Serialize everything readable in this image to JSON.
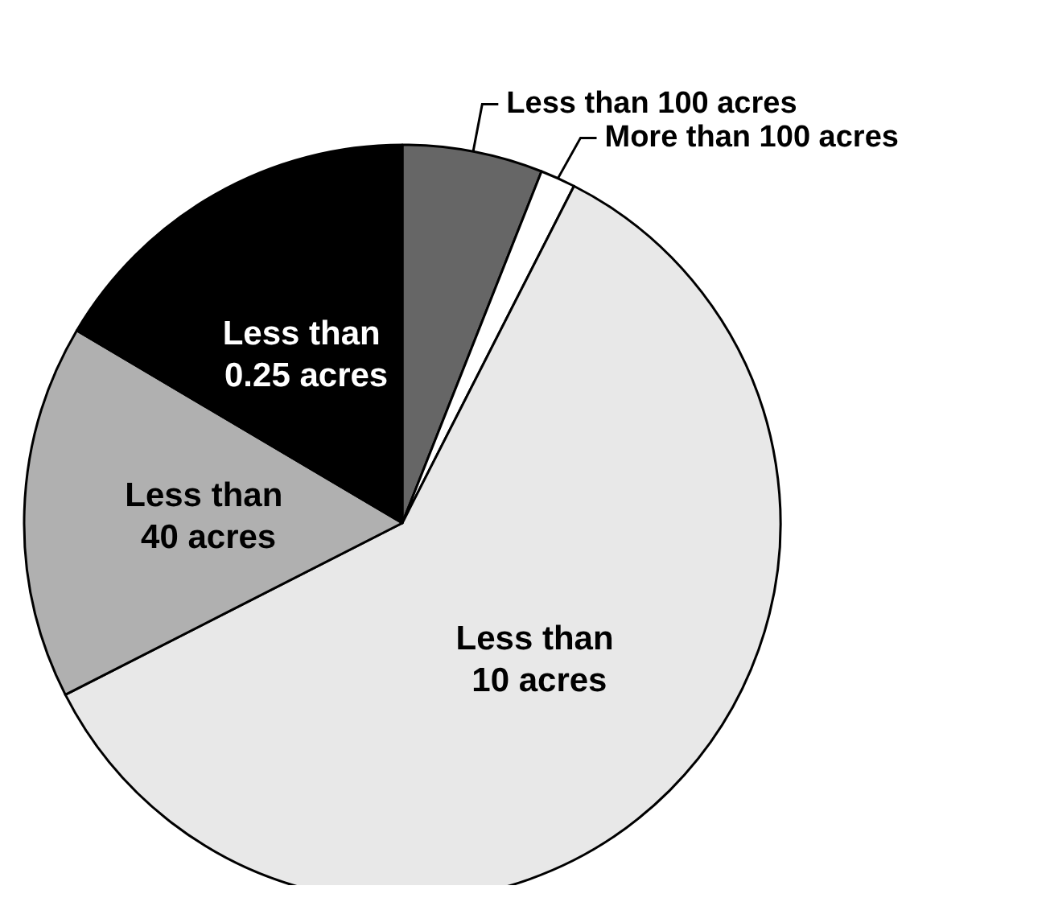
{
  "chart_data": {
    "type": "pie",
    "categories": [
      "Less than 100 acres",
      "More than 100 acres",
      "Less than 10 acres",
      "Less than 40 acres",
      "Less than 0.25 acres"
    ],
    "values": [
      6,
      1.5,
      60,
      16,
      16.5
    ],
    "colors": [
      "#666666",
      "#ffffff",
      "#e8e8e8",
      "#b0b0b0",
      "#000000"
    ],
    "legend": false
  }
}
